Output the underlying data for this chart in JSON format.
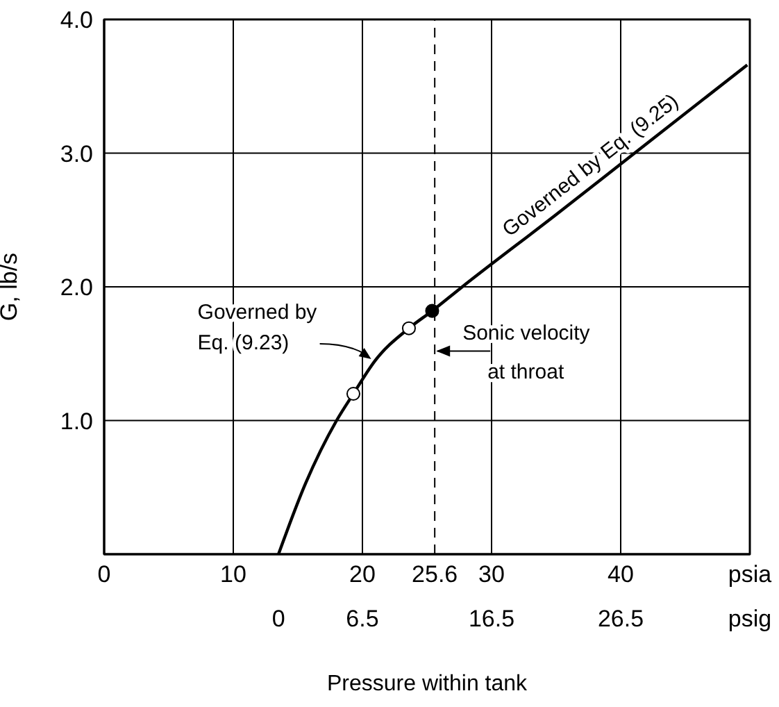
{
  "chart_data": {
    "type": "line",
    "xlabel": "Pressure within tank",
    "ylabel": "G, lb/s",
    "xlim": [
      0,
      50
    ],
    "xticks": [
      0,
      10,
      20,
      25.6,
      30,
      40,
      {
        "value": 50,
        "label": "psia"
      }
    ],
    "x2lim": [
      -13.5,
      36.5
    ],
    "x2ticks": [
      0,
      6.5,
      16.5,
      26.5,
      {
        "value": 36.5,
        "label": "psig"
      }
    ],
    "ylim": [
      0,
      4
    ],
    "yticks": [
      {
        "value": 1,
        "label": "1.0"
      },
      {
        "value": 2,
        "label": "2.0"
      },
      {
        "value": 3,
        "label": "3.0"
      },
      {
        "value": 4,
        "label": "4.0"
      }
    ],
    "grid": true,
    "series": [
      {
        "color": "#000000",
        "x": [
          13.5,
          15.6,
          18,
          19.3,
          21,
          23.6,
          25.4,
          27.6,
          35,
          42,
          49.8
        ],
        "values": [
          0,
          0.53,
          1.0,
          1.2,
          1.45,
          1.69,
          1.82,
          1.99,
          2.54,
          3.07,
          3.66
        ]
      },
      {
        "type": "scatter",
        "color": "#ffffff",
        "marker": "circle",
        "x": [
          19.3,
          23.6
        ],
        "values": [
          1.2,
          1.69
        ]
      },
      {
        "type": "scatter",
        "color": "#000000",
        "marker": "circle",
        "x": [
          25.4
        ],
        "values": [
          1.82
        ]
      }
    ],
    "ref_lines": [
      {
        "axis": "x",
        "value": 25.6,
        "label": "Sonic velocity at throat",
        "line_style": "dashed"
      }
    ],
    "annotations": [
      "Governed by Eq. (9.25)",
      {
        "text": "Governed by Eq. (9.23)",
        "x": 21,
        "y": 1.45
      }
    ]
  }
}
